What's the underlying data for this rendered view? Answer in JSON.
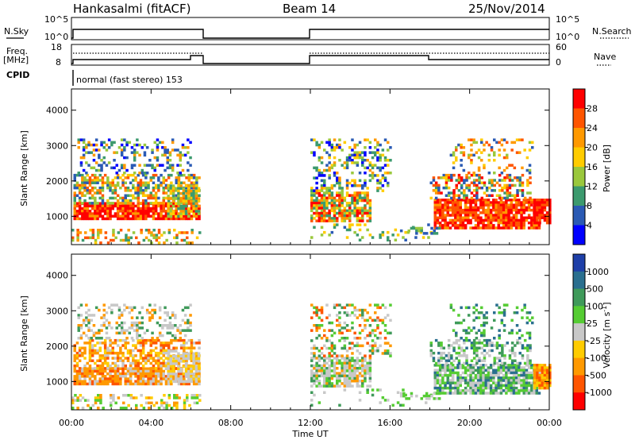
{
  "header": {
    "station": "Hankasalmi (fitACF)",
    "beam": "Beam 14",
    "date": "25/Nov/2014"
  },
  "strips": {
    "nsky_label": "N.Sky",
    "nsearch_label": "N.Search",
    "freq_label_line1": "Freq.",
    "freq_label_line2": "[MHz]",
    "nave_label": "Nave",
    "cpid_label": "CPID",
    "cpid_text": "normal (fast stereo) 153",
    "nsky_ticks": [
      "10^5",
      "10^0"
    ],
    "nsearch_ticks": [
      "10^5",
      "10^0"
    ],
    "freq_ticks": [
      "18",
      "8"
    ],
    "nave_ticks": [
      "60",
      "0"
    ]
  },
  "power_colorbar": {
    "title": "Power [dB]",
    "ticks": [
      "28",
      "24",
      "20",
      "16",
      "12",
      "8",
      "4"
    ],
    "colors": [
      "#ff0000",
      "#ff5500",
      "#ff9900",
      "#ffcc00",
      "#9ac83c",
      "#3c9a6e",
      "#2a5ab4",
      "#0000ff"
    ]
  },
  "velocity_colorbar": {
    "title": "Velocity [m s",
    "title_sup": "-1",
    "title_end": "]",
    "ticks": [
      "1000",
      "500",
      "100",
      "25",
      "-25",
      "-100",
      "-500",
      "-1000"
    ],
    "colors": [
      "#1e3fa8",
      "#2a6f8f",
      "#3f9a5a",
      "#55cc33",
      "#c8c8c8",
      "#ffcc00",
      "#ff9900",
      "#ff5500",
      "#ff0000"
    ]
  },
  "chart_data": [
    {
      "type": "heatmap",
      "name": "power",
      "ylabel": "Slant Range [km]",
      "y_ticks": [
        "1000",
        "2000",
        "3000",
        "4000"
      ],
      "ylim": [
        200,
        4600
      ],
      "xlim": [
        0,
        24
      ],
      "regions": [
        {
          "x": [
            0.0,
            6.5
          ],
          "y": [
            300,
            3200
          ],
          "note": "backscatter block"
        },
        {
          "x": [
            12.0,
            18.0
          ],
          "y": [
            800,
            3200
          ],
          "note": "backscatter block"
        },
        {
          "x": [
            18.0,
            24.0
          ],
          "y": [
            700,
            3000
          ],
          "note": "backscatter block"
        }
      ]
    },
    {
      "type": "heatmap",
      "name": "velocity",
      "ylabel": "Slant Range [km]",
      "xlabel": "Time UT",
      "x_ticks": [
        "00:00",
        "04:00",
        "08:00",
        "12:00",
        "16:00",
        "20:00",
        "00:00"
      ],
      "y_ticks": [
        "1000",
        "2000",
        "3000",
        "4000"
      ],
      "ylim": [
        200,
        4600
      ],
      "xlim": [
        0,
        24
      ]
    }
  ]
}
